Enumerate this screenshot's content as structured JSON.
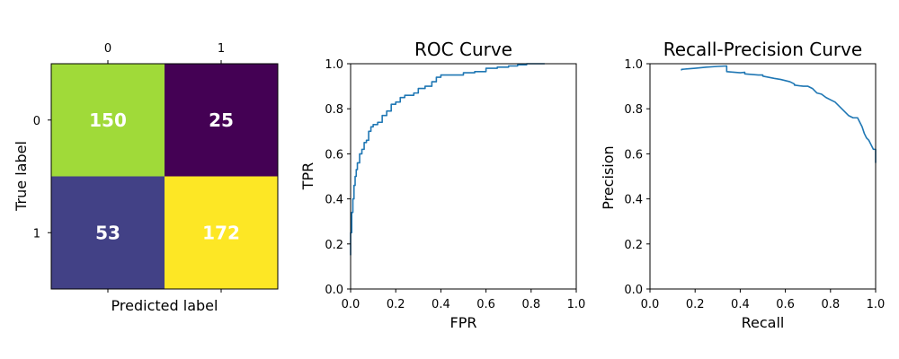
{
  "chart_data": [
    {
      "type": "heatmap",
      "title": "",
      "xlabel": "Predicted label",
      "ylabel": "True label",
      "x_categories": [
        "0",
        "1"
      ],
      "y_categories": [
        "0",
        "1"
      ],
      "values": [
        [
          150,
          25
        ],
        [
          53,
          172
        ]
      ],
      "colormap": "viridis",
      "cell_colors": [
        [
          "#a0da39",
          "#440154"
        ],
        [
          "#424186",
          "#fde725"
        ]
      ]
    },
    {
      "type": "line",
      "title": "ROC Curve",
      "xlabel": "FPR",
      "ylabel": "TPR",
      "xlim": [
        0.0,
        1.0
      ],
      "ylim": [
        0.0,
        1.0
      ],
      "xticks": [
        "0.0",
        "0.2",
        "0.4",
        "0.6",
        "0.8",
        "1.0"
      ],
      "yticks": [
        "0.0",
        "0.2",
        "0.4",
        "0.6",
        "0.8",
        "1.0"
      ],
      "grid": false,
      "line_color": "#1f77b4",
      "series": [
        {
          "x": [
            0.0,
            0.0,
            0.005,
            0.005,
            0.01,
            0.01,
            0.015,
            0.015,
            0.02,
            0.02,
            0.025,
            0.025,
            0.03,
            0.03,
            0.04,
            0.04,
            0.05,
            0.05,
            0.06,
            0.06,
            0.07,
            0.07,
            0.08,
            0.08,
            0.09,
            0.09,
            0.1,
            0.1,
            0.12,
            0.12,
            0.14,
            0.14,
            0.16,
            0.16,
            0.18,
            0.18,
            0.2,
            0.2,
            0.22,
            0.22,
            0.24,
            0.24,
            0.28,
            0.28,
            0.3,
            0.3,
            0.33,
            0.33,
            0.36,
            0.36,
            0.38,
            0.38,
            0.4,
            0.4,
            0.5,
            0.5,
            0.55,
            0.55,
            0.6,
            0.6,
            0.65,
            0.65,
            0.7,
            0.7,
            0.74,
            0.74,
            0.78,
            0.78,
            0.82,
            0.82,
            0.86
          ],
          "y": [
            0.15,
            0.25,
            0.25,
            0.34,
            0.34,
            0.4,
            0.4,
            0.46,
            0.46,
            0.5,
            0.5,
            0.53,
            0.53,
            0.56,
            0.56,
            0.6,
            0.6,
            0.62,
            0.62,
            0.65,
            0.65,
            0.66,
            0.66,
            0.7,
            0.7,
            0.72,
            0.72,
            0.73,
            0.73,
            0.74,
            0.74,
            0.77,
            0.77,
            0.79,
            0.79,
            0.82,
            0.82,
            0.83,
            0.83,
            0.85,
            0.85,
            0.86,
            0.86,
            0.87,
            0.87,
            0.89,
            0.89,
            0.9,
            0.9,
            0.92,
            0.92,
            0.94,
            0.94,
            0.95,
            0.95,
            0.96,
            0.96,
            0.965,
            0.965,
            0.98,
            0.98,
            0.985,
            0.985,
            0.99,
            0.99,
            0.995,
            0.995,
            1.0,
            1.0,
            1.0,
            1.0
          ]
        }
      ]
    },
    {
      "type": "line",
      "title": "Recall-Precision Curve",
      "xlabel": "Recall",
      "ylabel": "Precision",
      "xlim": [
        0.0,
        1.0
      ],
      "ylim": [
        0.0,
        1.0
      ],
      "xticks": [
        "0.0",
        "0.2",
        "0.4",
        "0.6",
        "0.8",
        "1.0"
      ],
      "yticks": [
        "0.0",
        "0.2",
        "0.4",
        "0.6",
        "0.8",
        "1.0"
      ],
      "grid": false,
      "line_color": "#1f77b4",
      "series": [
        {
          "x": [
            0.14,
            0.14,
            0.2,
            0.25,
            0.3,
            0.34,
            0.34,
            0.4,
            0.42,
            0.42,
            0.48,
            0.5,
            0.5,
            0.55,
            0.58,
            0.6,
            0.62,
            0.64,
            0.64,
            0.68,
            0.7,
            0.72,
            0.74,
            0.76,
            0.78,
            0.8,
            0.82,
            0.84,
            0.86,
            0.88,
            0.9,
            0.92,
            0.94,
            0.95,
            0.96,
            0.97,
            0.98,
            0.99,
            1.0,
            1.0
          ],
          "y": [
            0.97,
            0.975,
            0.98,
            0.985,
            0.988,
            0.99,
            0.965,
            0.96,
            0.962,
            0.955,
            0.95,
            0.95,
            0.945,
            0.935,
            0.93,
            0.925,
            0.92,
            0.91,
            0.905,
            0.9,
            0.9,
            0.89,
            0.87,
            0.865,
            0.85,
            0.84,
            0.83,
            0.81,
            0.79,
            0.77,
            0.76,
            0.76,
            0.72,
            0.69,
            0.67,
            0.66,
            0.64,
            0.62,
            0.62,
            0.56
          ]
        }
      ]
    }
  ]
}
